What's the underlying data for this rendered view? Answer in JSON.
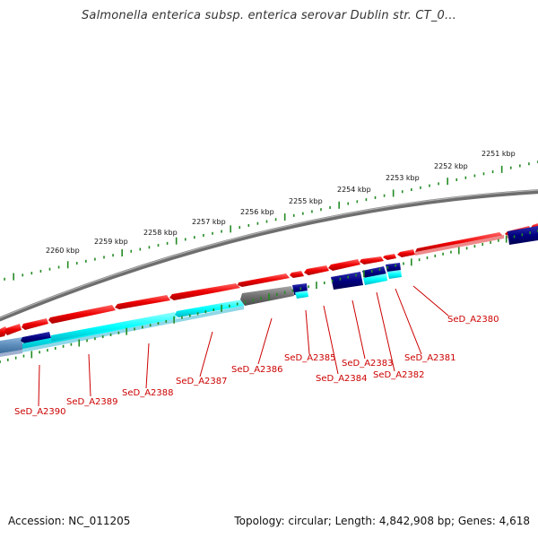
{
  "title": "Salmonella enterica subsp. enterica serovar Dublin str. CT_0...",
  "footer": {
    "accession": "Accession: NC_011205",
    "topology": "Topology: circular; Length: 4,842,908 bp; Genes: 4,618"
  },
  "colors": {
    "backbone": "#808080",
    "forward_cds": "#ff0000",
    "reverse_cds": "#00ffff",
    "other_feature": "#707070",
    "navy_feature": "#000080",
    "rna_feature": "#5a8ab8",
    "tick": "#228b22",
    "label": "#cc0000"
  },
  "kbp_labels": [
    "2251 kbp",
    "2252 kbp",
    "2253 kbp",
    "2254 kbp",
    "2255 kbp",
    "2256 kbp",
    "2257 kbp",
    "2258 kbp",
    "2259 kbp",
    "2260 kbp"
  ],
  "gene_labels": [
    "SeD_A2380",
    "SeD_A2381",
    "SeD_A2382",
    "SeD_A2383",
    "SeD_A2384",
    "SeD_A2385",
    "SeD_A2386",
    "SeD_A2387",
    "SeD_A2388",
    "SeD_A2389",
    "SeD_A2390"
  ]
}
